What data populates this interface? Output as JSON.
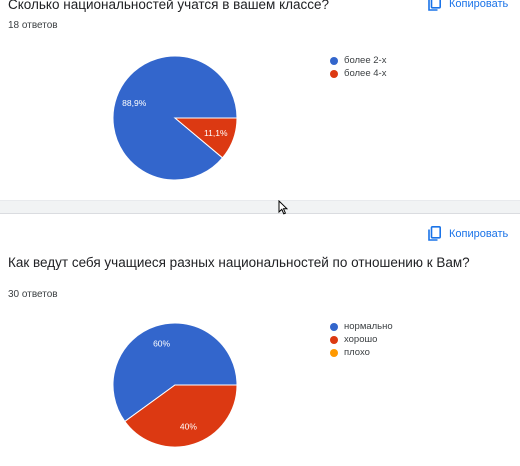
{
  "question1": {
    "title": "Сколько национальностей учатся в вашем классе?",
    "responses": "18 ответов",
    "copy_label": "Копировать",
    "copy_icon": "copy-icon"
  },
  "question2": {
    "title": "Как ведут себя учащиеся разных национальностей по отношению к Вам?",
    "responses": "30 ответов",
    "copy_label": "Копировать",
    "copy_icon": "copy-icon"
  },
  "colors": {
    "blue": "#3366cc",
    "red": "#dc3912",
    "orange": "#ff9900",
    "accent": "#1a73e8"
  },
  "chart_data": [
    {
      "type": "pie",
      "series": [
        {
          "name": "более 2-х",
          "value": 88.9,
          "label": "88,9%",
          "color": "#3366cc"
        },
        {
          "name": "более 4-х",
          "value": 11.1,
          "label": "11,1%",
          "color": "#dc3912"
        }
      ]
    },
    {
      "type": "pie",
      "series": [
        {
          "name": "нормально",
          "value": 60,
          "label": "60%",
          "color": "#3366cc"
        },
        {
          "name": "хорошо",
          "value": 40,
          "label": "40%",
          "color": "#dc3912"
        },
        {
          "name": "плохо",
          "value": 0,
          "label": "",
          "color": "#ff9900"
        }
      ]
    }
  ]
}
